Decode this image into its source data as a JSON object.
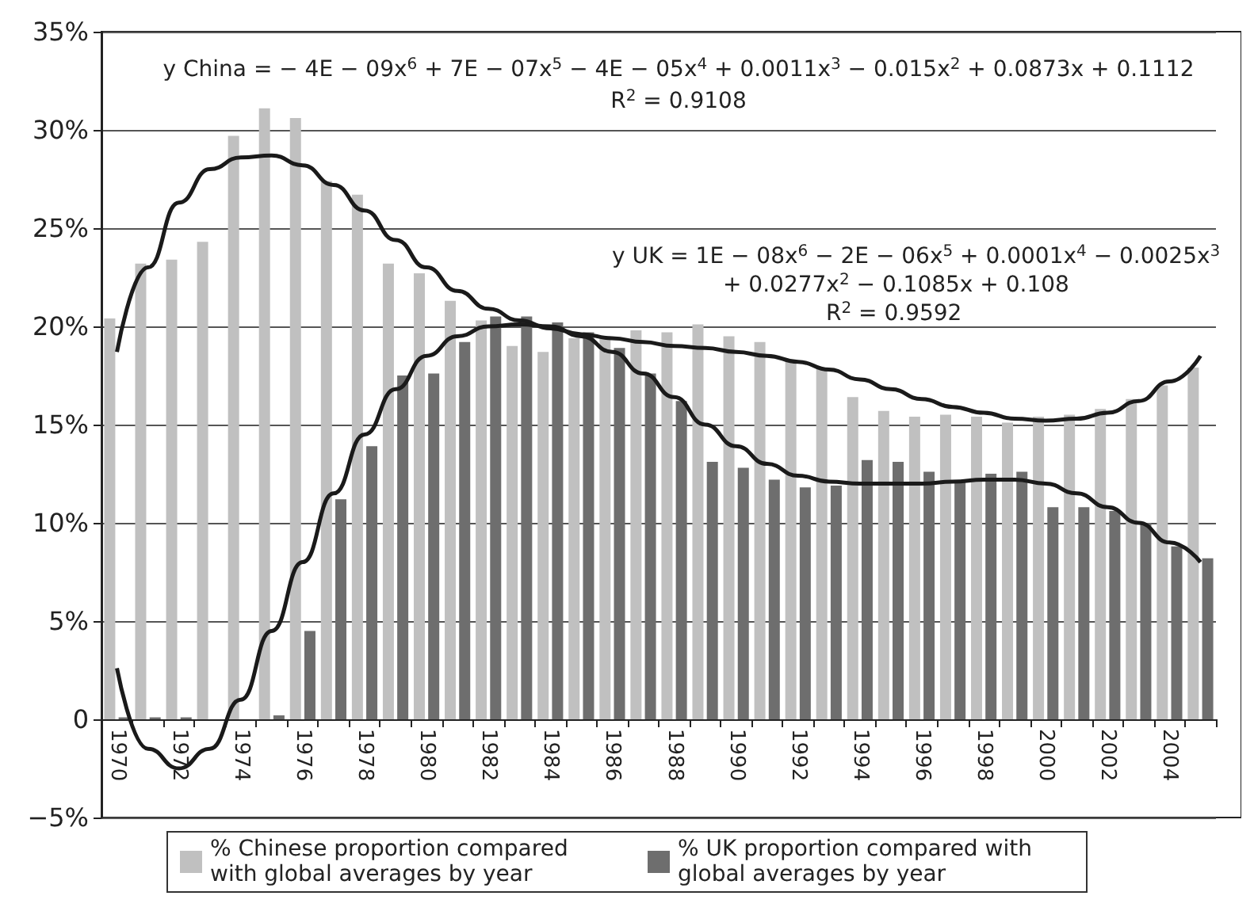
{
  "chart_data": {
    "type": "bar",
    "categories": [
      "1970",
      null,
      "1972",
      null,
      "1974",
      null,
      "1976",
      null,
      "1978",
      null,
      "1980",
      null,
      "1982",
      null,
      "1984",
      null,
      "1986",
      null,
      "1988",
      null,
      "1990",
      null,
      "1992",
      null,
      "1994",
      null,
      "1996",
      null,
      "1998",
      null,
      "2000",
      null,
      "2002",
      null,
      "2004",
      null
    ],
    "series": [
      {
        "name": "% Chinese proportion compared with global averages by year",
        "color": "#c0c0c0",
        "values": [
          20.4,
          23.2,
          23.4,
          24.3,
          29.7,
          31.1,
          30.6,
          27.4,
          26.7,
          23.2,
          22.7,
          21.3,
          20.3,
          19.0,
          18.7,
          19.4,
          19.5,
          19.8,
          19.7,
          20.1,
          19.5,
          19.2,
          18.3,
          17.9,
          16.4,
          15.7,
          15.4,
          15.5,
          15.4,
          15.1,
          15.4,
          15.5,
          15.8,
          16.3,
          17.0,
          17.9
        ]
      },
      {
        "name": "% UK proportion compared with global averages by year",
        "color": "#6e6e6e",
        "values": [
          0.1,
          0.1,
          0.1,
          0,
          0,
          0.2,
          4.5,
          11.2,
          13.9,
          17.5,
          17.6,
          19.2,
          20.5,
          20.5,
          20.2,
          19.7,
          18.9,
          17.6,
          16.2,
          13.1,
          12.8,
          12.2,
          11.8,
          11.9,
          13.2,
          13.1,
          12.6,
          12.1,
          12.5,
          12.6,
          10.8,
          10.8,
          10.6,
          10.0,
          8.8,
          8.2
        ]
      },
      {
        "type": "line",
        "color": "#1a1a1a",
        "values": [
          18.7,
          23,
          26.3,
          28,
          28.6,
          28.7,
          28.2,
          27.2,
          25.9,
          24.4,
          23,
          21.8,
          20.9,
          20.3,
          19.9,
          19.6,
          19.4,
          19.2,
          19.0,
          18.9,
          18.7,
          18.5,
          18.2,
          17.8,
          17.3,
          16.8,
          16.3,
          15.9,
          15.6,
          15.3,
          15.2,
          15.3,
          15.6,
          16.2,
          17.2,
          18.5
        ]
      },
      {
        "type": "line",
        "color": "#1a1a1a",
        "values": [
          2.6,
          -1.5,
          -2.5,
          -1.5,
          1.0,
          4.5,
          8.0,
          11.5,
          14.5,
          16.8,
          18.5,
          19.5,
          20.0,
          20.1,
          20.0,
          19.5,
          18.7,
          17.6,
          16.4,
          15.0,
          13.9,
          13.0,
          12.4,
          12.1,
          12.0,
          12.0,
          12.0,
          12.1,
          12.2,
          12.2,
          12.0,
          11.5,
          10.8,
          10.0,
          9.0,
          8.0
        ]
      }
    ],
    "ylim": [
      -5,
      35
    ],
    "yticks": [
      {
        "value": -5,
        "label": "−5%"
      },
      {
        "value": 0,
        "label": "0"
      },
      {
        "value": 5,
        "label": "5%"
      },
      {
        "value": 10,
        "label": "10%"
      },
      {
        "value": 15,
        "label": "15%"
      },
      {
        "value": 20,
        "label": "20%"
      },
      {
        "value": 25,
        "label": "25%"
      },
      {
        "value": 30,
        "label": "30%"
      },
      {
        "value": 35,
        "label": "35%"
      }
    ],
    "grid": "y",
    "legend": "bottom",
    "marker": "none",
    "line_style": "solid",
    "annotations": [
      "y China = − 4E − 09x$^{6}$ + 7E − 07x$^{5}$ − 4E − 05x$^{4}$ + 0.0011x$^{3}$ − 0.015x$^{2}$ + 0.0873x + 0.1112",
      "R$^{2}$ = 0.9108",
      "y UK = 1E − 08x$^{6}$ − 2E − 06x$^{5}$ + 0.0001x$^{4}$ − 0.0025x$^{3}$",
      "+ 0.0277x$^{2}$ − 0.1085x + 0.108",
      "R$^{2}$ = 0.9592"
    ]
  }
}
